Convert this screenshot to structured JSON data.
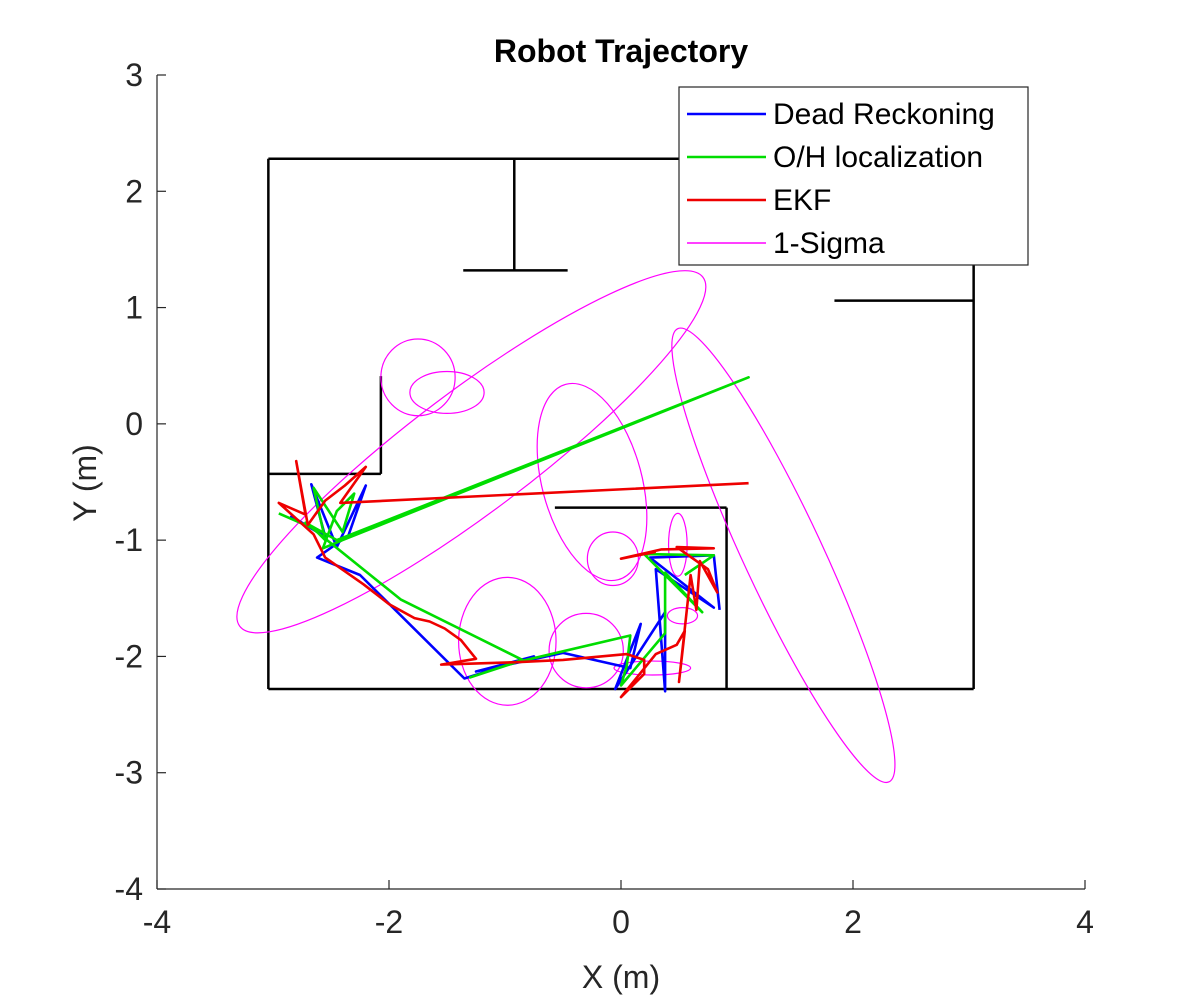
{
  "chart_data": {
    "type": "line",
    "title": "Robot Trajectory",
    "xlabel": "X (m)",
    "ylabel": "Y (m)",
    "xlim": [
      -4,
      4
    ],
    "ylim": [
      -4,
      3
    ],
    "xticks": [
      -4,
      -2,
      0,
      2,
      4
    ],
    "yticks": [
      -4,
      -3,
      -2,
      -1,
      0,
      1,
      2,
      3
    ],
    "xtick_labels": [
      "-4",
      "-2",
      "0",
      "2",
      "4"
    ],
    "ytick_labels": [
      "-4",
      "-3",
      "-2",
      "-1",
      "0",
      "1",
      "2",
      "3"
    ],
    "grid": false,
    "legend_position": "top-right",
    "map_walls": {
      "color": "#000000",
      "segments": [
        [
          [
            -3.04,
            2.28
          ],
          [
            3.04,
            2.28
          ]
        ],
        [
          [
            3.04,
            2.28
          ],
          [
            3.04,
            -2.28
          ]
        ],
        [
          [
            3.04,
            -2.28
          ],
          [
            -3.04,
            -2.28
          ]
        ],
        [
          [
            -3.04,
            -2.28
          ],
          [
            -3.04,
            2.28
          ]
        ],
        [
          [
            -0.92,
            2.28
          ],
          [
            -0.92,
            1.32
          ]
        ],
        [
          [
            -1.36,
            1.32
          ],
          [
            -0.46,
            1.32
          ]
        ],
        [
          [
            1.84,
            1.06
          ],
          [
            3.04,
            1.06
          ]
        ],
        [
          [
            -3.04,
            -0.43
          ],
          [
            -2.07,
            -0.43
          ]
        ],
        [
          [
            -2.07,
            -0.43
          ],
          [
            -2.07,
            0.41
          ]
        ],
        [
          [
            -0.57,
            -0.72
          ],
          [
            0.91,
            -0.72
          ]
        ],
        [
          [
            0.91,
            -0.72
          ],
          [
            0.91,
            -2.28
          ]
        ]
      ]
    },
    "series": [
      {
        "name": "Dead Reckoning",
        "color": "#0000ff",
        "points": [
          [
            -2.85,
            -0.79
          ],
          [
            -2.55,
            -0.97
          ],
          [
            -2.67,
            -0.52
          ],
          [
            -2.45,
            -1.06
          ],
          [
            -2.2,
            -0.53
          ],
          [
            -2.35,
            -0.96
          ],
          [
            -2.62,
            -1.15
          ],
          [
            -2.25,
            -1.3
          ],
          [
            -1.35,
            -2.19
          ],
          [
            -0.75,
            -2.0
          ],
          [
            -1.25,
            -2.13
          ],
          [
            -0.5,
            -1.97
          ],
          [
            0.08,
            -2.1
          ],
          [
            0.17,
            -1.72
          ],
          [
            -0.05,
            -2.28
          ],
          [
            0.38,
            -1.62
          ],
          [
            0.38,
            -2.3
          ],
          [
            0.3,
            -1.25
          ],
          [
            0.8,
            -1.58
          ],
          [
            0.25,
            -1.15
          ],
          [
            0.8,
            -1.13
          ],
          [
            0.85,
            -1.6
          ]
        ]
      },
      {
        "name": "O/H localization",
        "color": "#00dd00",
        "points": [
          [
            -2.95,
            -0.77
          ],
          [
            -2.65,
            -0.9
          ],
          [
            -2.55,
            -1.0
          ],
          [
            -2.65,
            -0.55
          ],
          [
            -2.4,
            -0.93
          ],
          [
            -2.3,
            -0.6
          ],
          [
            -2.45,
            -0.75
          ],
          [
            -2.57,
            -1.07
          ],
          [
            -2.4,
            -1.0
          ],
          [
            1.1,
            0.4
          ],
          [
            -2.45,
            -1.0
          ],
          [
            -2.72,
            -0.85
          ],
          [
            -1.9,
            -1.51
          ],
          [
            -0.85,
            -2.03
          ],
          [
            -1.3,
            -2.18
          ],
          [
            -0.9,
            -2.05
          ],
          [
            0.08,
            -1.82
          ],
          [
            0.05,
            -2.08
          ],
          [
            0.0,
            -2.25
          ],
          [
            0.38,
            -1.8
          ],
          [
            0.38,
            -1.28
          ],
          [
            0.7,
            -1.62
          ],
          [
            0.2,
            -1.12
          ],
          [
            0.8,
            -1.13
          ],
          [
            0.55,
            -1.3
          ]
        ]
      },
      {
        "name": "EKF",
        "color": "#ee0000",
        "points": [
          [
            1.1,
            -0.51
          ],
          [
            -2.42,
            -0.68
          ],
          [
            -2.2,
            -0.37
          ],
          [
            -2.38,
            -0.53
          ],
          [
            -2.55,
            -0.66
          ],
          [
            -2.7,
            -0.87
          ],
          [
            -2.8,
            -0.32
          ],
          [
            -2.72,
            -0.78
          ],
          [
            -2.95,
            -0.68
          ],
          [
            -2.65,
            -0.95
          ],
          [
            -2.55,
            -1.15
          ],
          [
            -2.22,
            -1.38
          ],
          [
            -2.0,
            -1.55
          ],
          [
            -1.78,
            -1.67
          ],
          [
            -1.65,
            -1.7
          ],
          [
            -1.52,
            -1.76
          ],
          [
            -1.38,
            -1.86
          ],
          [
            -1.25,
            -2.02
          ],
          [
            -1.55,
            -2.07
          ],
          [
            -0.9,
            -2.05
          ],
          [
            -0.5,
            -2.03
          ],
          [
            0.05,
            -1.98
          ],
          [
            0.2,
            -2.03
          ],
          [
            0.2,
            -2.15
          ],
          [
            0.0,
            -2.35
          ],
          [
            0.3,
            -1.98
          ],
          [
            0.48,
            -1.9
          ],
          [
            0.55,
            -1.78
          ],
          [
            0.5,
            -2.22
          ],
          [
            0.6,
            -1.3
          ],
          [
            0.65,
            -1.6
          ],
          [
            0.68,
            -1.18
          ],
          [
            0.83,
            -1.45
          ],
          [
            0.75,
            -1.25
          ],
          [
            0.48,
            -1.06
          ],
          [
            0.8,
            -1.07
          ],
          [
            0.35,
            -1.08
          ],
          [
            0.0,
            -1.16
          ],
          [
            0.3,
            -1.1
          ]
        ]
      },
      {
        "name": "1-Sigma",
        "color": "#ff00ff",
        "ellipses": [
          {
            "cx": -1.29,
            "cy": -0.24,
            "rx": 2.5,
            "ry": 0.52,
            "angle": 37
          },
          {
            "cx": -1.75,
            "cy": 0.4,
            "rx": 0.32,
            "ry": 0.33,
            "angle": 0
          },
          {
            "cx": -1.5,
            "cy": 0.27,
            "rx": 0.32,
            "ry": 0.18,
            "angle": 0
          },
          {
            "cx": -0.25,
            "cy": -0.5,
            "rx": 0.43,
            "ry": 0.87,
            "angle": 15
          },
          {
            "cx": -0.98,
            "cy": -1.87,
            "rx": 0.42,
            "ry": 0.55,
            "angle": 0
          },
          {
            "cx": -0.3,
            "cy": -1.95,
            "rx": 0.32,
            "ry": 0.32,
            "angle": 0
          },
          {
            "cx": -0.07,
            "cy": -1.16,
            "rx": 0.22,
            "ry": 0.23,
            "angle": 0
          },
          {
            "cx": 0.49,
            "cy": -1.04,
            "rx": 0.08,
            "ry": 0.27,
            "angle": 0
          },
          {
            "cx": 0.53,
            "cy": -1.65,
            "rx": 0.13,
            "ry": 0.07,
            "angle": 0
          },
          {
            "cx": 0.27,
            "cy": -2.1,
            "rx": 0.33,
            "ry": 0.06,
            "angle": 0
          },
          {
            "cx": 1.4,
            "cy": -1.13,
            "rx": 0.34,
            "ry": 2.15,
            "angle": 25
          }
        ]
      }
    ]
  }
}
